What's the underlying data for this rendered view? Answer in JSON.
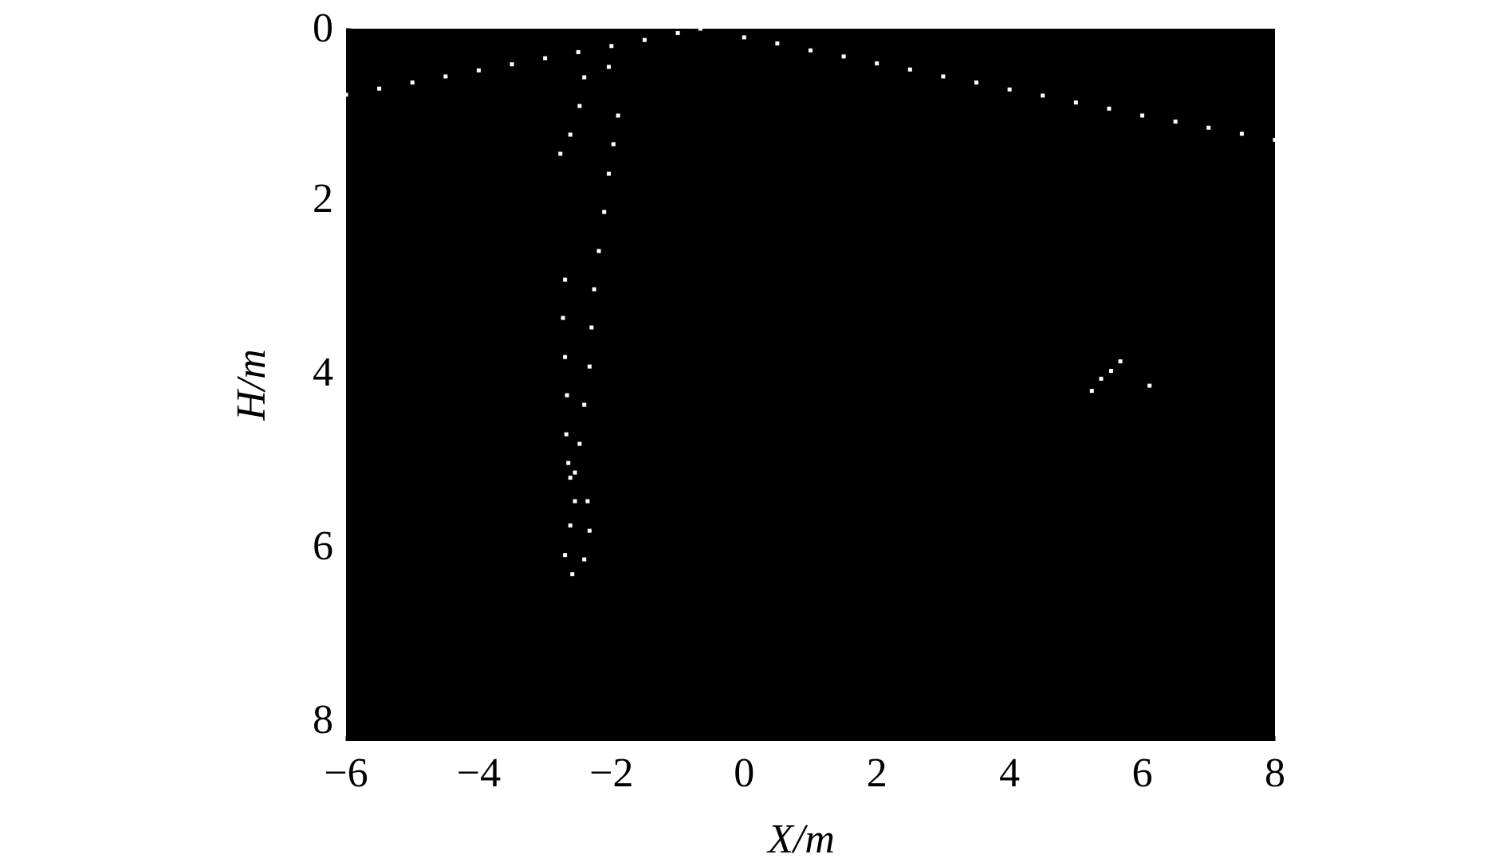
{
  "chart_data": {
    "type": "scatter",
    "xlabel": "X/m",
    "ylabel": "H/m",
    "background": "#000000",
    "xlim": [
      -6,
      8
    ],
    "ylim": [
      8.2,
      0
    ],
    "xticks": [
      {
        "value": -6,
        "label": "−6"
      },
      {
        "value": -4,
        "label": "−4"
      },
      {
        "value": -2,
        "label": "−2"
      },
      0,
      2,
      4,
      6,
      8
    ],
    "yticks": [
      0,
      2,
      4,
      6,
      8
    ],
    "series": [
      {
        "color": "#ffffff",
        "x": [
          -6,
          -5.5,
          -5,
          -4.5,
          -4,
          -3.5,
          -3,
          -2.5,
          -2,
          -1.5,
          -1,
          -0.66,
          0,
          0.5,
          1,
          1.5,
          2,
          2.5,
          3,
          3.5,
          4,
          4.5,
          5,
          5.5,
          6,
          6.5,
          7,
          7.5,
          8
        ],
        "values": [
          0.76,
          0.69,
          0.62,
          0.55,
          0.48,
          0.41,
          0.34,
          0.27,
          0.2,
          0.13,
          0.05,
          0,
          0.1,
          0.17,
          0.25,
          0.32,
          0.4,
          0.47,
          0.55,
          0.62,
          0.7,
          0.77,
          0.85,
          0.92,
          1.0,
          1.07,
          1.14,
          1.21,
          1.28
        ]
      },
      {
        "color": "#ffffff",
        "x": [
          -1.9,
          -1.97,
          -2.04,
          -2.11,
          -2.19,
          -2.26,
          -2.3,
          -2.33,
          -2.41,
          -2.48,
          -2.55,
          -2.7,
          -2.73,
          -2.7,
          -2.67,
          -2.68,
          -2.65,
          -2.62,
          -2.77,
          -2.62,
          -2.48,
          -2.41,
          -2.04,
          -2.55,
          -2.62,
          -2.7,
          -2.59,
          -2.41,
          -2.33,
          -2.36
        ],
        "values": [
          1.0,
          1.33,
          1.67,
          2.11,
          2.56,
          3.0,
          3.44,
          3.89,
          4.33,
          4.78,
          5.11,
          2.89,
          3.33,
          3.78,
          4.22,
          4.67,
          5.0,
          5.17,
          1.44,
          1.22,
          0.89,
          0.56,
          0.44,
          5.44,
          5.72,
          6.06,
          6.28,
          6.11,
          5.78,
          5.44
        ]
      },
      {
        "color": "#ffffff",
        "x": [
          5.24,
          5.38,
          5.53,
          5.67,
          6.11
        ],
        "values": [
          4.17,
          4.03,
          3.94,
          3.83,
          4.11
        ]
      }
    ]
  }
}
